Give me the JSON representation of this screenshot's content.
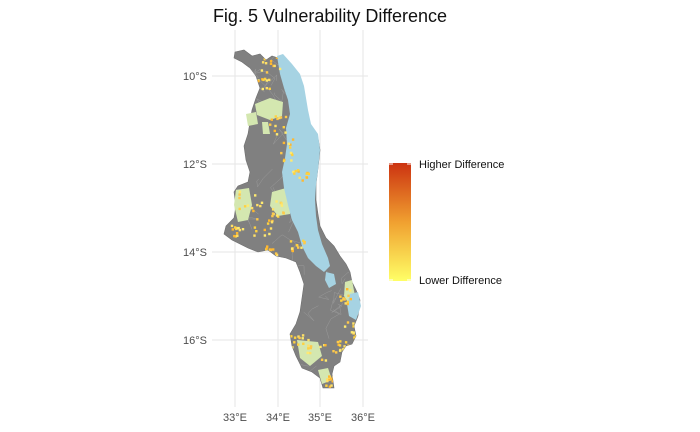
{
  "title": "Fig. 5 Vulnerability Difference",
  "map": {
    "lon_ticks": [
      "33°E",
      "34°E",
      "35°E",
      "36°E"
    ],
    "lat_ticks": [
      "10°S",
      "12°S",
      "14°S",
      "16°S"
    ],
    "colors": {
      "districts": "#808080",
      "district_borders": "#9a9a9a",
      "lake": "#a6d3e3",
      "protected_areas": "#d4e7b0",
      "grid": "#e6e6e6",
      "low": "#ffff66",
      "high": "#cc3311"
    }
  },
  "legend": {
    "high_label": "Higher Difference",
    "low_label": "Lower Difference",
    "position": "right"
  }
}
